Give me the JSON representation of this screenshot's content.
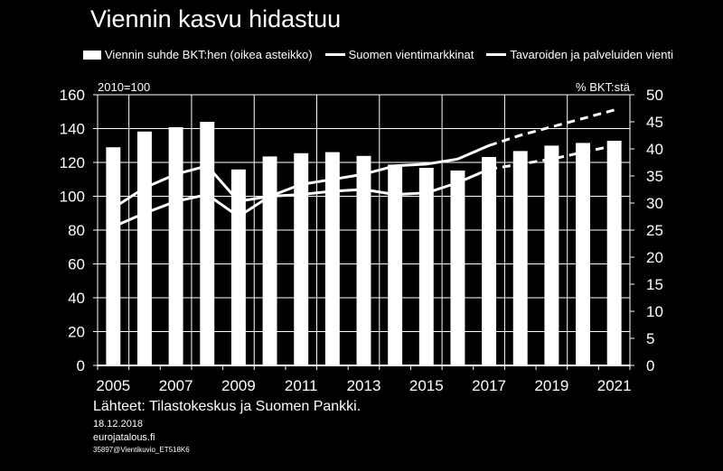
{
  "title": "Viennin kasvu hidastuu",
  "legend": {
    "bars": "Viennin suhde BKT:hen (oikea asteikko)",
    "line1": "Suomen vientimarkkinat",
    "line2": "Tavaroiden ja palveluiden vienti"
  },
  "left_unit": "2010=100",
  "right_unit": "% BKT:stä",
  "source": "Lähteet: Tilastokeskus ja Suomen Pankki.",
  "date": "18.12.2018",
  "site": "eurojatalous.fi",
  "code": "35897@Vientikuvio_ET518K6",
  "colors": {
    "background": "#000000",
    "foreground": "#ffffff"
  },
  "chart_data": {
    "type": "bar",
    "x": [
      2005,
      2006,
      2007,
      2008,
      2009,
      2010,
      2011,
      2012,
      2013,
      2014,
      2015,
      2016,
      2017,
      2018,
      2019,
      2020,
      2021
    ],
    "x_tick_labels": [
      "2005",
      "2007",
      "2009",
      "2011",
      "2013",
      "2015",
      "2017",
      "2019",
      "2021"
    ],
    "left_ylim": [
      0,
      160
    ],
    "left_ticks": [
      0,
      20,
      40,
      60,
      80,
      100,
      120,
      140,
      160
    ],
    "right_ylim": [
      0,
      50
    ],
    "right_ticks": [
      0,
      5,
      10,
      15,
      20,
      25,
      30,
      35,
      40,
      45,
      50
    ],
    "series": [
      {
        "name": "Viennin suhde BKT:hen (oikea asteikko)",
        "type": "bar",
        "axis": "right",
        "values": [
          40.3,
          43.2,
          44.0,
          45.0,
          36.2,
          38.6,
          39.2,
          39.4,
          38.7,
          37.1,
          36.5,
          36.0,
          38.5,
          39.6,
          40.6,
          41.1,
          41.5
        ]
      },
      {
        "name": "Suomen vientimarkkinat",
        "type": "line",
        "axis": "left",
        "values": [
          93,
          105,
          113,
          118,
          97,
          100,
          107,
          110,
          113,
          118,
          119,
          122,
          130,
          136,
          141,
          146,
          151
        ],
        "forecast_from_index": 12
      },
      {
        "name": "Tavaroiden ja palveluiden vienti",
        "type": "line",
        "axis": "left",
        "values": [
          82,
          90,
          97,
          101,
          88,
          100,
          101,
          103,
          104,
          101,
          102,
          108,
          116,
          119,
          122,
          126,
          130
        ],
        "forecast_from_index": 12
      }
    ]
  }
}
